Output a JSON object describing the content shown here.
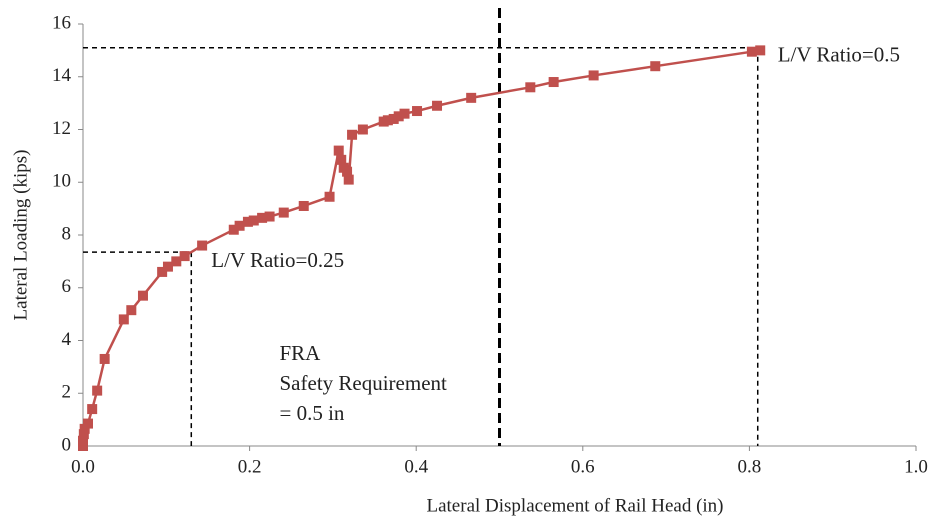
{
  "chart_data": {
    "type": "line",
    "xlabel": "Lateral Displacement of Rail Head (in)",
    "ylabel": "Lateral Loading (kips)",
    "color": "#c0504d",
    "x": [
      0,
      0,
      0.001,
      0.002,
      0.006,
      0.011,
      0.017,
      0.026,
      0.049,
      0.058,
      0.072,
      0.095,
      0.102,
      0.112,
      0.122,
      0.143,
      0.181,
      0.188,
      0.198,
      0.205,
      0.215,
      0.224,
      0.241,
      0.265,
      0.296,
      0.307,
      0.31,
      0.313,
      0.317,
      0.319,
      0.323,
      0.336,
      0.361,
      0.366,
      0.373,
      0.379,
      0.386,
      0.401,
      0.425,
      0.466,
      0.537,
      0.565,
      0.613,
      0.687,
      0.803,
      0.813
    ],
    "values": [
      0,
      0.2,
      0.45,
      0.65,
      0.85,
      1.4,
      2.1,
      3.3,
      4.8,
      5.15,
      5.7,
      6.6,
      6.8,
      7.0,
      7.2,
      7.6,
      8.2,
      8.35,
      8.5,
      8.55,
      8.65,
      8.7,
      8.85,
      9.1,
      9.45,
      11.2,
      10.85,
      10.55,
      10.4,
      10.1,
      11.8,
      12.0,
      12.3,
      12.35,
      12.4,
      12.5,
      12.6,
      12.7,
      12.9,
      13.2,
      13.6,
      13.8,
      14.05,
      14.4,
      14.95,
      15.0
    ],
    "xlim": [
      0,
      1.0
    ],
    "xticks": [
      {
        "value": 0,
        "label": "0.0"
      },
      0.2,
      0.4,
      0.6,
      0.8,
      {
        "value": 1,
        "label": "1.0"
      }
    ],
    "ylim": [
      0,
      16
    ],
    "yticks": [
      0,
      2,
      4,
      6,
      8,
      10,
      12,
      14,
      16
    ],
    "grid": false,
    "annotations": [
      {
        "text": "L/V Ratio=0.5",
        "x": 0.81,
        "y": 15.1
      },
      {
        "text": "L/V Ratio=0.25",
        "x": 0.13,
        "y": 7.35
      }
    ],
    "vline": {
      "x": 0.5,
      "text": [
        "FRA",
        "Safety Requirement",
        "= 0.5 in"
      ]
    }
  }
}
